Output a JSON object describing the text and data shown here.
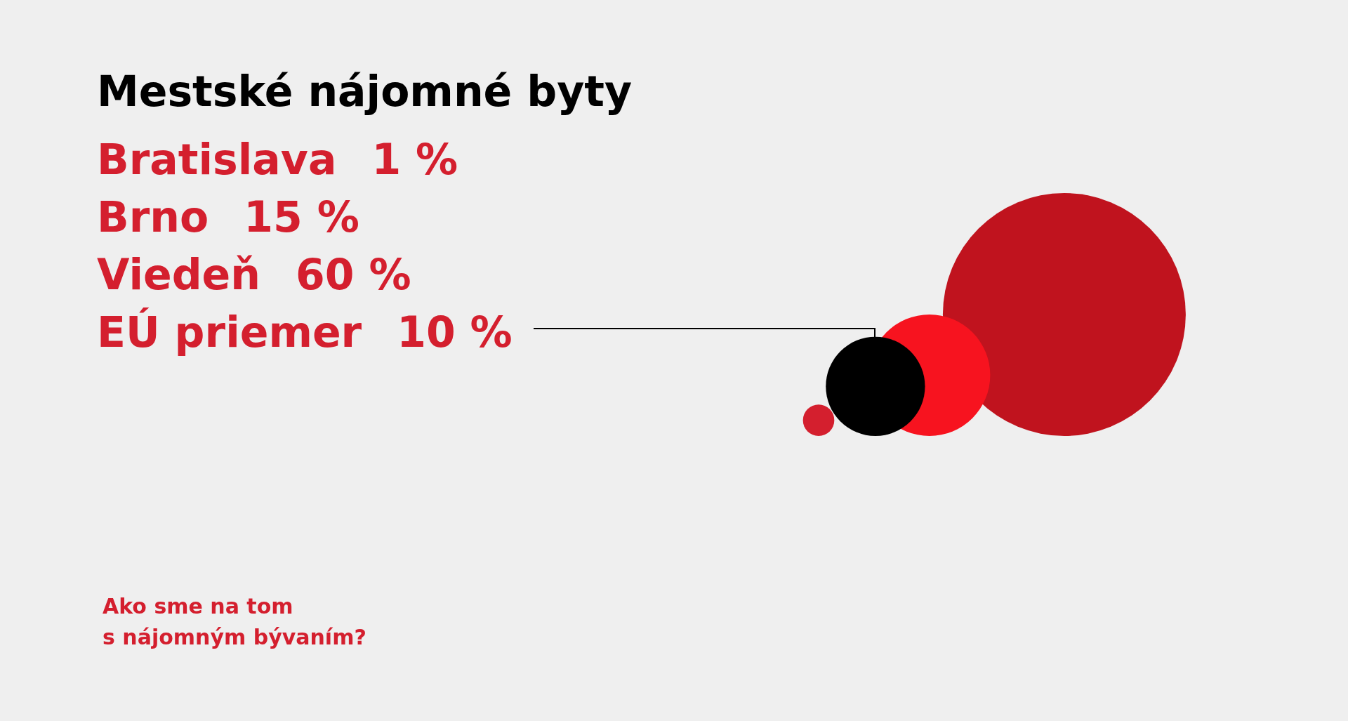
{
  "chart_data": {
    "type": "other",
    "title": "Mestské nájomné byty",
    "categories": [
      "Bratislava",
      "Brno",
      "Viedeň",
      "EÚ priemer"
    ],
    "values": [
      1,
      15,
      60,
      10
    ],
    "value_labels": [
      "1 %",
      "15 %",
      "60 %",
      "10 %"
    ],
    "colors": [
      "#d41f2e",
      "#f7131f",
      "#c0131e",
      "#000000"
    ],
    "annotations": [
      "Ako sme na tom\ns nájomným bývaním?"
    ]
  }
}
